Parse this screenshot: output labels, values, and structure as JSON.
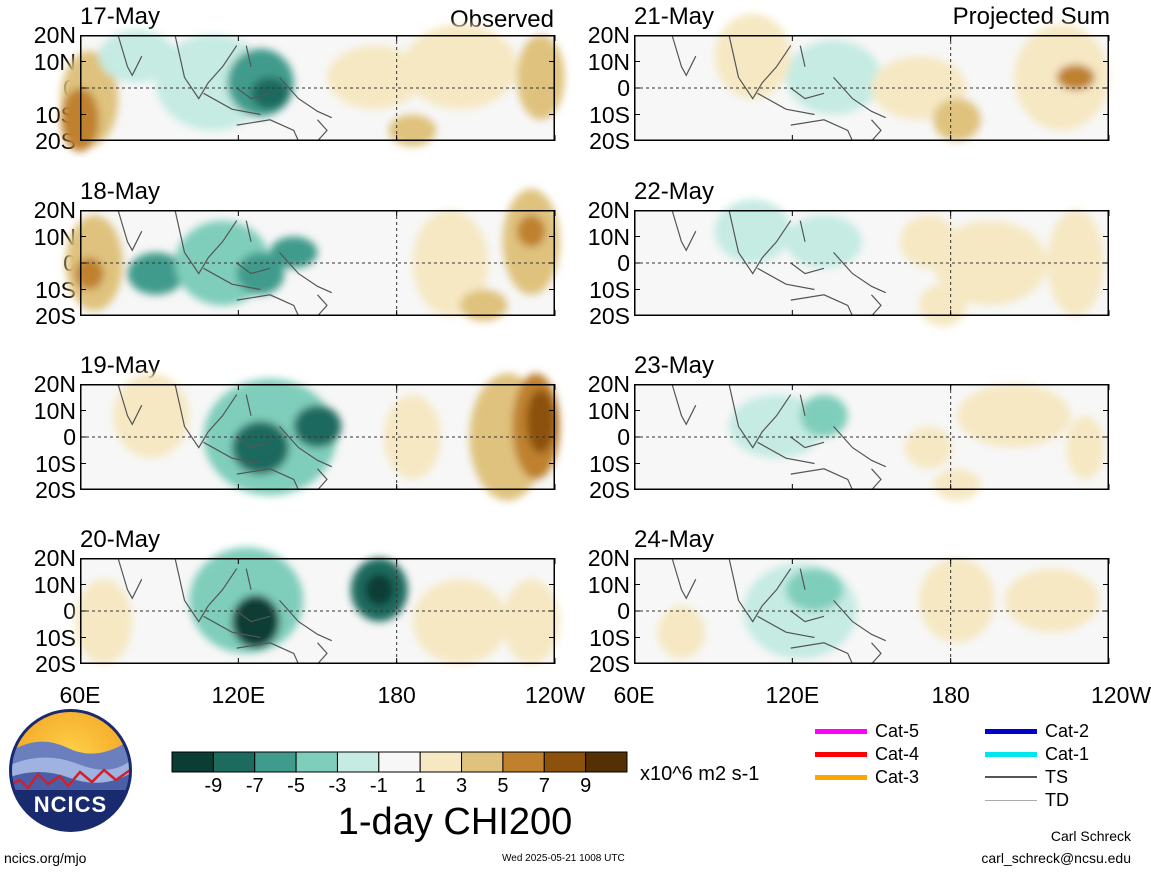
{
  "maps": {
    "left": {
      "title": "Observed",
      "panels": [
        {
          "date": "17-May"
        },
        {
          "date": "18-May"
        },
        {
          "date": "19-May"
        },
        {
          "date": "20-May"
        }
      ]
    },
    "right": {
      "title": "Projected Sum",
      "panels": [
        {
          "date": "21-May"
        },
        {
          "date": "22-May"
        },
        {
          "date": "23-May"
        },
        {
          "date": "24-May"
        }
      ]
    },
    "lat_labels": [
      "20N",
      "10N",
      "0",
      "10S",
      "20S"
    ],
    "lon_labels_left": [
      "60E",
      "120E",
      "180",
      "120W"
    ],
    "lon_labels_right": [
      "60E",
      "120E",
      "180",
      "120W"
    ]
  },
  "colorbar": {
    "title": "1-day CHI200",
    "units": "x10^6 m2 s-1",
    "ticks": [
      "-9",
      "-7",
      "-5",
      "-3",
      "-1",
      "1",
      "3",
      "5",
      "7",
      "9"
    ],
    "colors": [
      "#0b3d34",
      "#1d6b5f",
      "#3f9b8c",
      "#7fcdbb",
      "#c5ebe3",
      "#f7f7f7",
      "#f6e8c3",
      "#dfc27d",
      "#bf812d",
      "#8c510a",
      "#543005"
    ]
  },
  "legend": [
    {
      "label": "Cat-5",
      "color": "#ff00ff"
    },
    {
      "label": "Cat-4",
      "color": "#ff0000"
    },
    {
      "label": "Cat-3",
      "color": "#ffa500"
    },
    {
      "label": "Cat-2",
      "color": "#0000cc"
    },
    {
      "label": "Cat-1",
      "color": "#00e5ee"
    },
    {
      "label": "TS",
      "color": "#555555"
    },
    {
      "label": "TD",
      "color": "#aaaaaa"
    }
  ],
  "logo": {
    "text": "NCICS"
  },
  "footer": {
    "url": "ncics.org/mjo",
    "timestamp": "Wed 2025-05-21 1008 UTC",
    "author": "Carl Schreck",
    "email": "carl_schreck@ncsu.edu"
  }
}
